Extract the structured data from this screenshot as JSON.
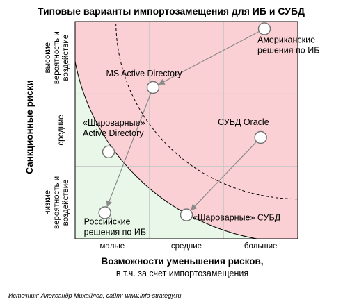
{
  "chart_data": {
    "type": "scatter",
    "title": "Типовые варианты импортозамещения для ИБ и СУБД",
    "xlabel": "Возможности уменьшения рисков,",
    "xlabel_sub": "в т.ч. за счет импортозамещения",
    "ylabel": "Санкционные риски",
    "x_categories": [
      "малые",
      "средние",
      "большие"
    ],
    "y_categories": [
      [
        "низкие",
        "вероятность и",
        "воздействие"
      ],
      [
        "средние"
      ],
      [
        "высокие",
        "вероятность и",
        "воздействие"
      ]
    ],
    "xlim": [
      0,
      3
    ],
    "ylim": [
      0,
      3
    ],
    "grid": true,
    "zones": [
      {
        "color": "#e8f7e8",
        "radius": 0
      },
      {
        "color": "#fbfac4",
        "radius": 1.85
      },
      {
        "color": "#fbd0d4",
        "radius": 3.05
      }
    ],
    "dashed_radius": 2.45,
    "points": [
      {
        "id": "us-ib",
        "label": [
          "Американские",
          "решения по ИБ"
        ],
        "x": 2.55,
        "y": 2.9,
        "anchor": "start",
        "dx": -10,
        "dy": 20
      },
      {
        "id": "ms-ad",
        "label": [
          "MS Active Directory"
        ],
        "x": 1.05,
        "y": 2.09,
        "anchor": "middle",
        "dx": -13,
        "dy": -16
      },
      {
        "id": "oracle",
        "label": [
          "СУБД Oracle"
        ],
        "x": 2.5,
        "y": 1.4,
        "anchor": "end",
        "dx": 12,
        "dy": -18
      },
      {
        "id": "sharovar-ad",
        "label": [
          "«Шароварные»",
          "Active Directory"
        ],
        "x": 0.45,
        "y": 1.2,
        "anchor": "start",
        "dx": -37,
        "dy": -38
      },
      {
        "id": "ru-ib",
        "label": [
          "Российские",
          "решения по ИБ"
        ],
        "x": 0.4,
        "y": 0.36,
        "anchor": "start",
        "dx": -30,
        "dy": 17
      },
      {
        "id": "sharovar-dbms",
        "label": [
          "«Шароварные» СУБД"
        ],
        "x": 1.5,
        "y": 0.33,
        "anchor": "start",
        "dx": 9,
        "dy": 8
      }
    ],
    "arrows": [
      {
        "from": "us-ib",
        "to": "ms-ad"
      },
      {
        "from": "ms-ad",
        "to": "ru-ib"
      },
      {
        "from": "oracle",
        "to": "sharovar-dbms"
      }
    ]
  },
  "source_text": "Источник: Александр Михайлов, сайт: www.info-strategy.ru"
}
